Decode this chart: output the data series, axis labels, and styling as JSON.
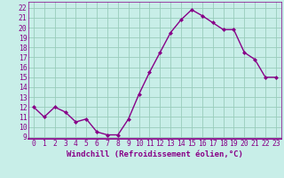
{
  "x": [
    0,
    1,
    2,
    3,
    4,
    5,
    6,
    7,
    8,
    9,
    10,
    11,
    12,
    13,
    14,
    15,
    16,
    17,
    18,
    19,
    20,
    21,
    22,
    23
  ],
  "y": [
    12.0,
    11.0,
    12.0,
    11.5,
    10.5,
    10.8,
    9.5,
    9.2,
    9.2,
    10.8,
    13.3,
    15.5,
    17.5,
    19.5,
    20.8,
    21.8,
    21.2,
    20.5,
    19.8,
    19.8,
    17.5,
    16.8,
    15.0,
    15.0
  ],
  "line_color": "#880088",
  "bg_color": "#c8eee8",
  "grid_color": "#99ccbb",
  "xlabel": "Windchill (Refroidissement éolien,°C)",
  "xlim": [
    -0.5,
    23.5
  ],
  "ylim": [
    8.8,
    22.6
  ],
  "yticks": [
    9,
    10,
    11,
    12,
    13,
    14,
    15,
    16,
    17,
    18,
    19,
    20,
    21,
    22
  ],
  "xticks": [
    0,
    1,
    2,
    3,
    4,
    5,
    6,
    7,
    8,
    9,
    10,
    11,
    12,
    13,
    14,
    15,
    16,
    17,
    18,
    19,
    20,
    21,
    22,
    23
  ],
  "marker": "D",
  "marker_size": 2.0,
  "line_width": 1.0,
  "xlabel_fontsize": 6.5,
  "tick_fontsize": 5.8,
  "color": "#880088"
}
